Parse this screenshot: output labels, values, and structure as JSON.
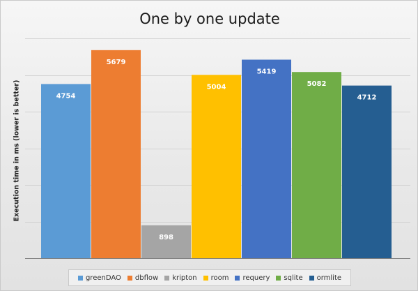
{
  "chart_data": {
    "type": "bar",
    "title": "One by one update",
    "xlabel": "",
    "ylabel": "Execution time in ms (lower is better)",
    "ylim": [
      0,
      6000
    ],
    "y_tick_step": 1000,
    "y_tick_labels_visible": false,
    "grid": true,
    "legend_position": "bottom",
    "series": [
      {
        "name": "greenDAO",
        "value": 4754,
        "label": "4754",
        "color": "#5b9bd5"
      },
      {
        "name": "dbflow",
        "value": 5679,
        "label": "5679",
        "color": "#ed7d31"
      },
      {
        "name": "kripton",
        "value": 898,
        "label": "898",
        "color": "#a5a5a5"
      },
      {
        "name": "room",
        "value": 5004,
        "label": "5004",
        "color": "#ffc000"
      },
      {
        "name": "requery",
        "value": 5419,
        "label": "5419",
        "color": "#4472c4"
      },
      {
        "name": "sqlite",
        "value": 5082,
        "label": "5082",
        "color": "#70ad47"
      },
      {
        "name": "ormlite",
        "value": 4712,
        "label": "4712",
        "color": "#255e91"
      }
    ]
  }
}
